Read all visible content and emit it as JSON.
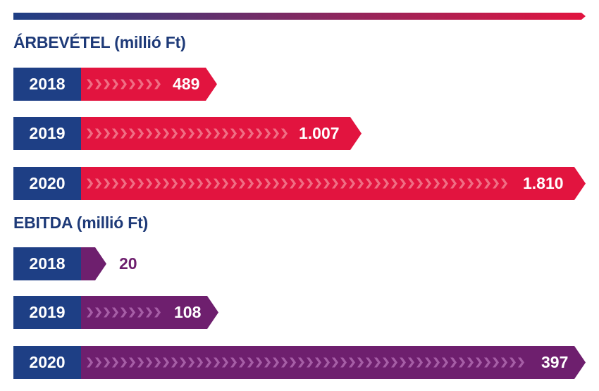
{
  "colors": {
    "year_bg": "#1e3f85",
    "revenue_bar": "#e2143f",
    "ebitda_bar": "#6e1f6e",
    "chevron_revenue": "#f06e84",
    "chevron_ebitda": "#a65ea6",
    "title": "#1e3a78",
    "gradient_start": "#1e3f85",
    "gradient_end": "#e2143f"
  },
  "chart_data": [
    {
      "type": "bar",
      "title": "ÁRBEVÉTEL (millió Ft)",
      "categories": [
        "2018",
        "2019",
        "2020"
      ],
      "values": [
        489,
        1007,
        1810
      ],
      "value_labels": [
        "489",
        "1.007",
        "1.810"
      ]
    },
    {
      "type": "bar",
      "title": "EBITDA (millió Ft)",
      "categories": [
        "2018",
        "2019",
        "2020"
      ],
      "values": [
        20,
        108,
        397
      ],
      "value_labels": [
        "20",
        "108",
        "397"
      ]
    }
  ]
}
